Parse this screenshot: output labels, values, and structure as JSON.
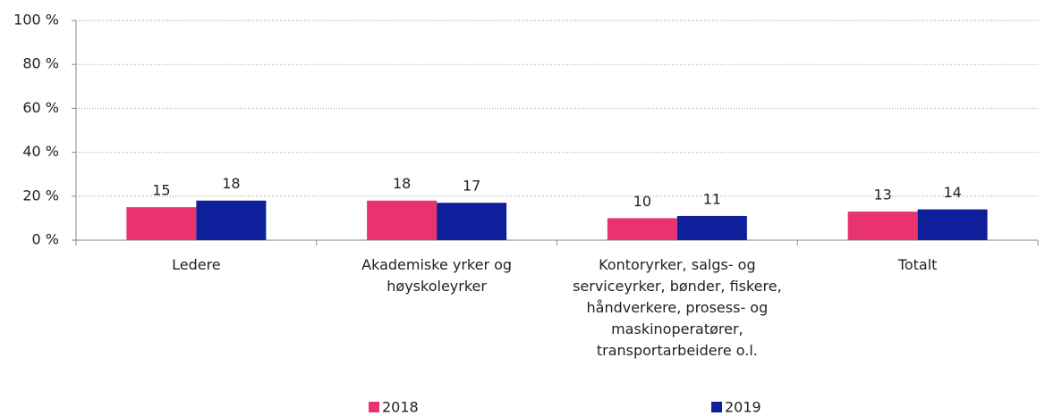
{
  "chart_data": {
    "type": "bar",
    "categories": [
      "Ledere",
      "Akademiske yrker og høyskoleyrker",
      "Kontoryrker, salgs- og serviceyrker, bønder, fiskere, håndverkere, prosess- og maskinoperatører, transportarbeidere o.l.",
      "Totalt"
    ],
    "series": [
      {
        "name": "2018",
        "color": "#e8336f",
        "values": [
          15,
          18,
          10,
          13
        ]
      },
      {
        "name": "2019",
        "color": "#0f1f9c",
        "values": [
          18,
          17,
          11,
          14
        ]
      }
    ],
    "ylim": [
      0,
      100
    ],
    "yticks": [
      {
        "value": 0,
        "label": "0 %"
      },
      {
        "value": 20,
        "label": "20 %"
      },
      {
        "value": 40,
        "label": "40 %"
      },
      {
        "value": 60,
        "label": "60 %"
      },
      {
        "value": 80,
        "label": "80 %"
      },
      {
        "value": 100,
        "label": "100 %"
      }
    ],
    "grid": true,
    "legend": "bottom"
  }
}
